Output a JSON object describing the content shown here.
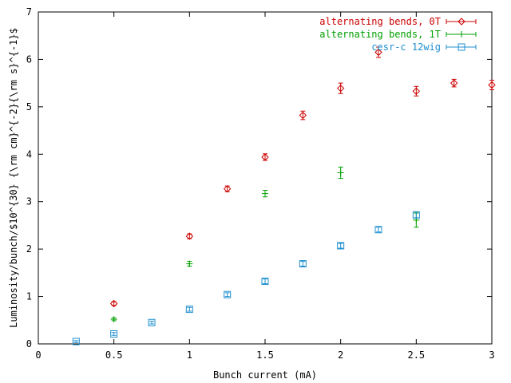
{
  "chart_data": {
    "type": "scatter",
    "title": "",
    "xlabel": "Bunch current (mA)",
    "ylabel": "Luminosity/bunch/$10^{30} {\\rm cm}^{-2}{\\rm s}^{-1}$",
    "xlim": [
      0,
      3
    ],
    "ylim": [
      0,
      7
    ],
    "xticks": [
      "0",
      "0.5",
      "1",
      "1.5",
      "2",
      "2.5",
      "3"
    ],
    "yticks": [
      "0",
      "1",
      "2",
      "3",
      "4",
      "5",
      "6",
      "7"
    ],
    "grid": false,
    "legend_position": "top-right",
    "series": [
      {
        "name": "alternating bends, 0T",
        "color": "#cc0000",
        "marker": "diamond",
        "points": [
          {
            "x": 0.5,
            "y": 0.85,
            "err": 0.04
          },
          {
            "x": 1.0,
            "y": 2.27,
            "err": 0.05
          },
          {
            "x": 1.25,
            "y": 3.27,
            "err": 0.06
          },
          {
            "x": 1.5,
            "y": 3.94,
            "err": 0.07
          },
          {
            "x": 1.75,
            "y": 4.82,
            "err": 0.09
          },
          {
            "x": 2.0,
            "y": 5.39,
            "err": 0.11
          },
          {
            "x": 2.25,
            "y": 6.15,
            "err": 0.11
          },
          {
            "x": 2.5,
            "y": 5.33,
            "err": 0.1
          },
          {
            "x": 2.75,
            "y": 5.5,
            "err": 0.08
          },
          {
            "x": 3.0,
            "y": 5.46,
            "err": 0.1
          }
        ]
      },
      {
        "name": "alternating bends, 1T",
        "color": "#00a000",
        "marker": "plus",
        "points": [
          {
            "x": 0.5,
            "y": 0.52,
            "err": 0.03
          },
          {
            "x": 1.0,
            "y": 1.69,
            "err": 0.05
          },
          {
            "x": 1.5,
            "y": 3.17,
            "err": 0.07
          },
          {
            "x": 2.0,
            "y": 3.61,
            "err": 0.12
          },
          {
            "x": 2.5,
            "y": 2.61,
            "err": 0.15
          }
        ]
      },
      {
        "name": "cesr-c 12wig",
        "color": "#1f8fd0",
        "marker": "square",
        "points": [
          {
            "x": 0.25,
            "y": 0.05,
            "err": 0.02
          },
          {
            "x": 0.5,
            "y": 0.21,
            "err": 0.03
          },
          {
            "x": 0.75,
            "y": 0.45,
            "err": 0.03
          },
          {
            "x": 1.0,
            "y": 0.73,
            "err": 0.04
          },
          {
            "x": 1.25,
            "y": 1.04,
            "err": 0.04
          },
          {
            "x": 1.5,
            "y": 1.32,
            "err": 0.05
          },
          {
            "x": 1.75,
            "y": 1.69,
            "err": 0.05
          },
          {
            "x": 2.0,
            "y": 2.07,
            "err": 0.05
          },
          {
            "x": 2.25,
            "y": 2.41,
            "err": 0.05
          },
          {
            "x": 2.5,
            "y": 2.72,
            "err": 0.06
          }
        ]
      }
    ]
  }
}
